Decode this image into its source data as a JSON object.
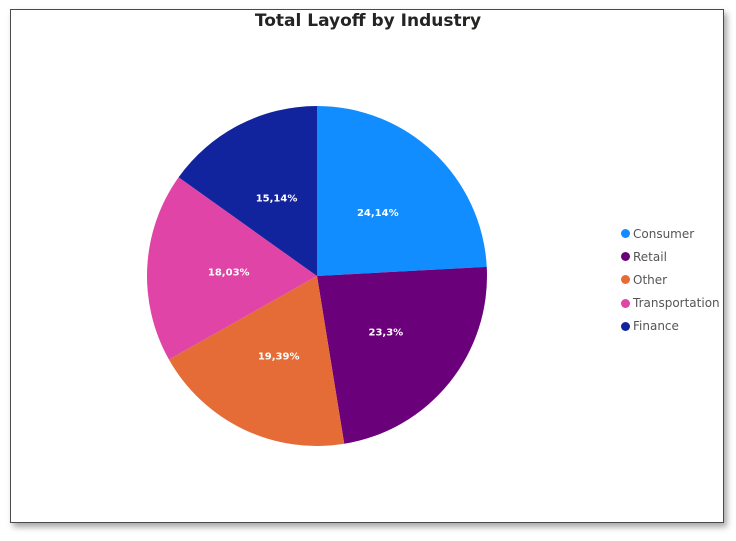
{
  "chart_data": {
    "type": "pie",
    "title": "Total Layoff by Industry",
    "slices": [
      {
        "label": "Consumer",
        "value": 24.14,
        "display": "24,14%",
        "color": "#118DFF"
      },
      {
        "label": "Retail",
        "value": 23.3,
        "display": "23,3%",
        "color": "#6B007B"
      },
      {
        "label": "Other",
        "value": 19.39,
        "display": "19,39%",
        "color": "#E66C37"
      },
      {
        "label": "Transportation",
        "value": 18.03,
        "display": "18,03%",
        "color": "#E044A7"
      },
      {
        "label": "Finance",
        "value": 15.14,
        "display": "15,14%",
        "color": "#12239E"
      }
    ],
    "legend": {
      "position": "right"
    }
  }
}
